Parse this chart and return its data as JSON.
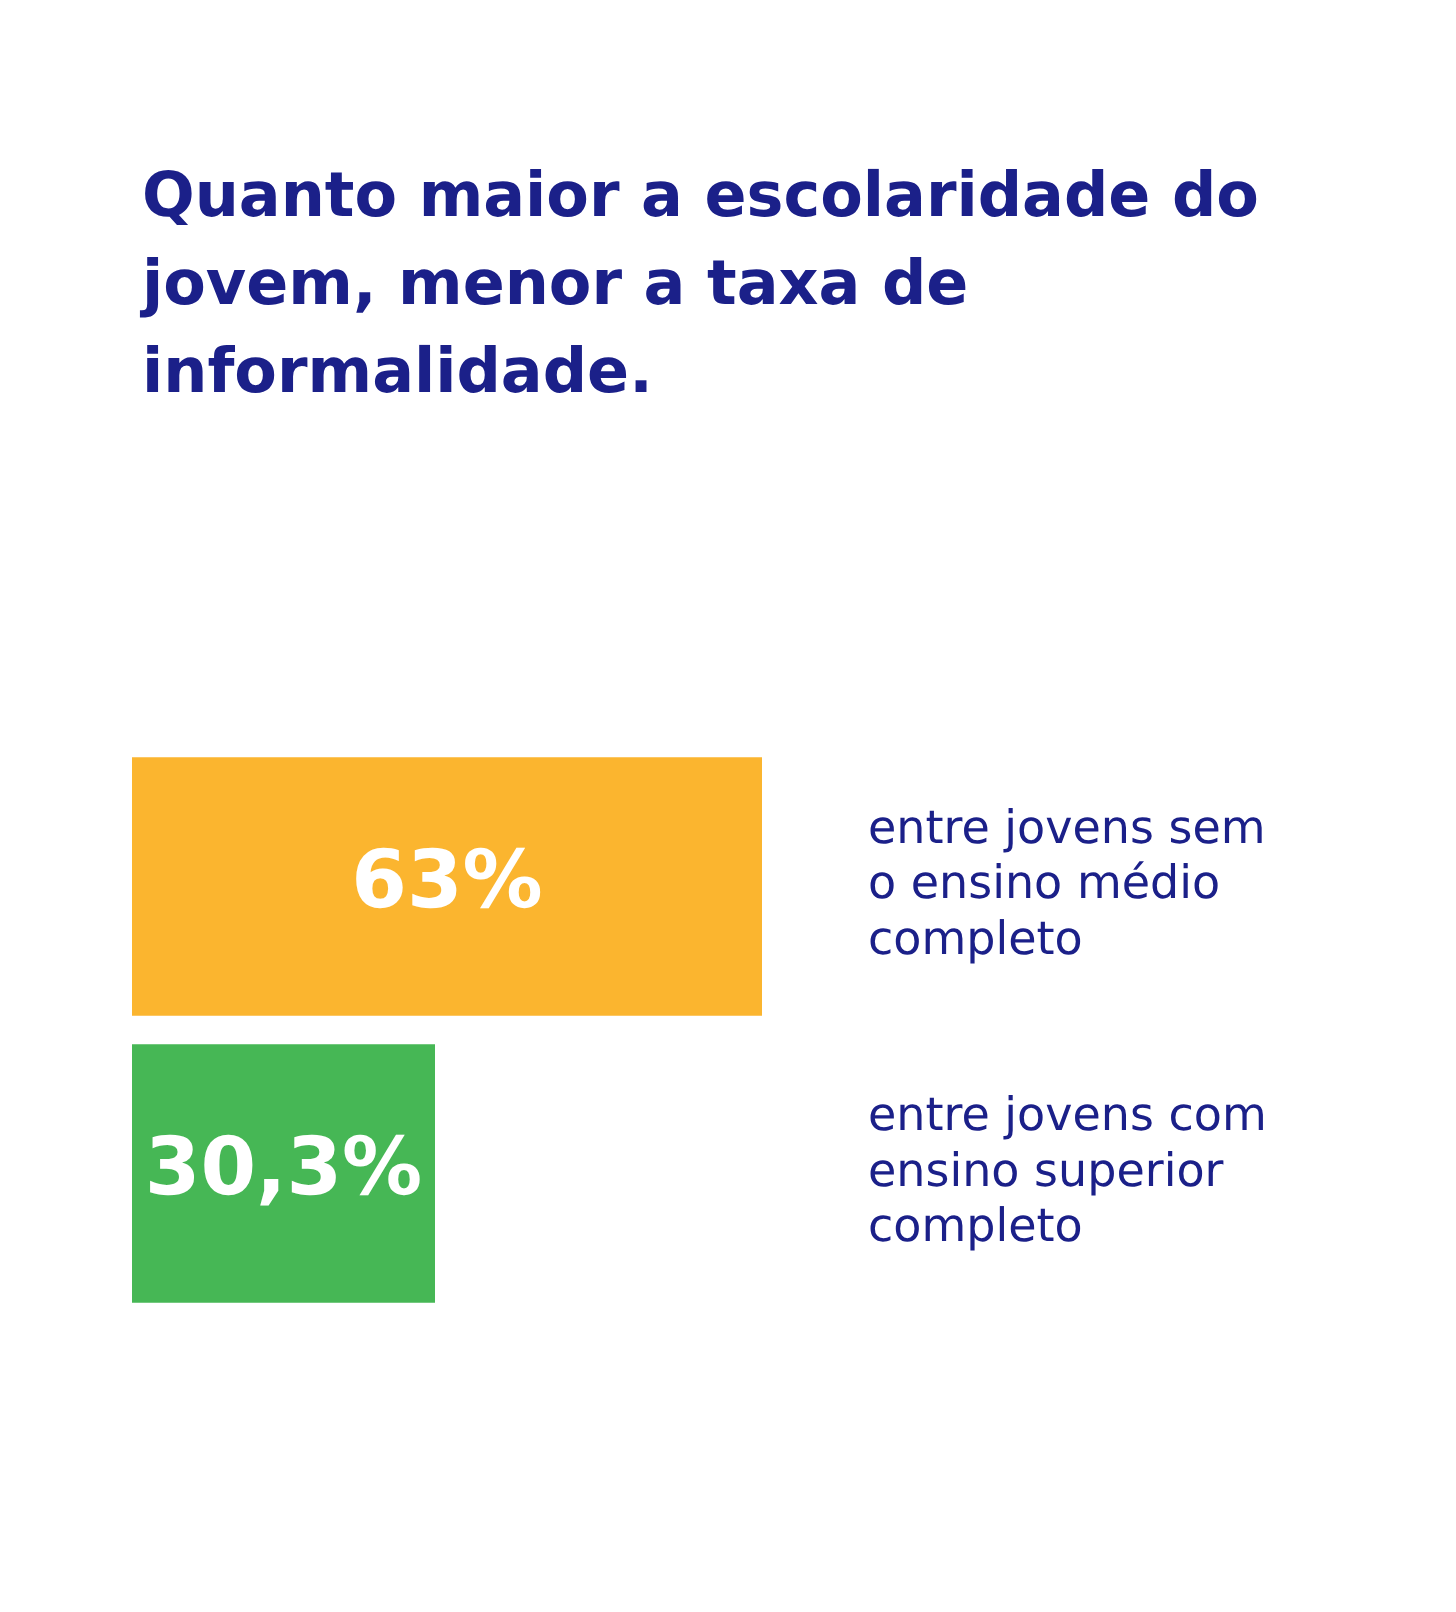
{
  "chart_data": {
    "type": "bar",
    "orientation": "horizontal",
    "title": "Quanto maior a escolaridade do jovem, menor a taxa de informalidade.",
    "categories": [
      "entre jovens sem o ensino médio completo",
      "entre jovens com ensino superior completo"
    ],
    "values": [
      63,
      30.3
    ],
    "value_labels": [
      "63%",
      "30,3%"
    ],
    "colors": [
      "#fbb52f",
      "#46b755"
    ],
    "legend": false
  }
}
